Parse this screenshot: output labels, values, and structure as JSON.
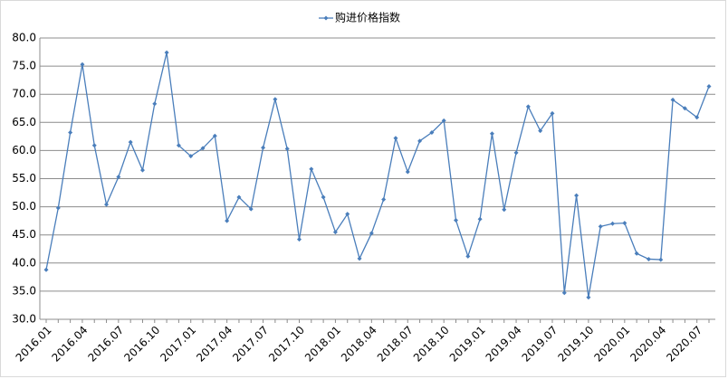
{
  "chart_data": {
    "type": "line",
    "categories": [
      "2016.01",
      null,
      null,
      "2016.04",
      null,
      null,
      "2016.07",
      null,
      null,
      "2016.10",
      null,
      null,
      "2017.01",
      null,
      null,
      "2017.04",
      null,
      null,
      "2017.07",
      null,
      null,
      "2017.10",
      null,
      null,
      "2018.01",
      null,
      null,
      "2018.04",
      null,
      null,
      "2018.07",
      null,
      null,
      "2018.10",
      null,
      null,
      "2019.01",
      null,
      null,
      "2019.04",
      null,
      null,
      "2019.07",
      null,
      null,
      "2019.10",
      null,
      null,
      "2020.01",
      null,
      null,
      "2020.04",
      null,
      null,
      "2020.07",
      null
    ],
    "series": [
      {
        "name": "购进价格指数",
        "color": "#4a7ebb",
        "values": [
          38.8,
          49.8,
          63.2,
          75.3,
          60.9,
          50.4,
          55.3,
          61.5,
          56.5,
          68.3,
          77.4,
          60.9,
          59.0,
          60.4,
          62.6,
          47.5,
          51.7,
          49.6,
          60.5,
          69.1,
          60.3,
          44.2,
          56.7,
          51.7,
          45.5,
          48.7,
          40.8,
          45.3,
          51.3,
          62.2,
          56.2,
          61.7,
          63.2,
          65.3,
          47.6,
          41.2,
          47.8,
          63.0,
          49.5,
          59.6,
          67.8,
          63.5,
          66.6,
          34.7,
          52.0,
          33.9,
          46.5,
          47.0,
          47.1,
          41.7,
          40.7,
          40.6,
          69.0,
          67.5,
          65.9,
          71.4
        ]
      }
    ],
    "ylim": [
      30,
      80
    ],
    "yticks": [
      {
        "value": 30,
        "label": "30.0"
      },
      {
        "value": 35,
        "label": "35.0"
      },
      {
        "value": 40,
        "label": "40.0"
      },
      {
        "value": 45,
        "label": "45.0"
      },
      {
        "value": 50,
        "label": "50.0"
      },
      {
        "value": 55,
        "label": "55.0"
      },
      {
        "value": 60,
        "label": "60.0"
      },
      {
        "value": 65,
        "label": "65.0"
      },
      {
        "value": 70,
        "label": "70.0"
      },
      {
        "value": 75,
        "label": "75.0"
      },
      {
        "value": 80,
        "label": "80.0"
      }
    ],
    "grid": true,
    "legend": "top"
  }
}
